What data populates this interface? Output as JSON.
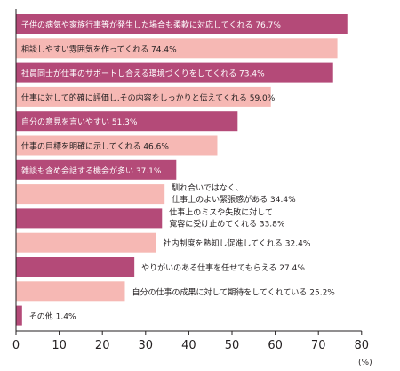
{
  "chart_data": {
    "type": "bar",
    "orientation": "horizontal",
    "categories": [
      "子供の病気や家族行事等が発生した場合も柔軟に対応してくれる",
      "相談しやすい雰囲気を作ってくれる",
      "社員同士が仕事のサポートし合える環境づくりをしてくれる",
      "仕事に対して的確に評価し,その内容をしっかりと伝えてくれる",
      "自分の意見を言いやすい",
      "仕事の目標を明確に示してくれる",
      "雑談も含め会話する機会が多い",
      "馴れ合いではなく、仕事上のよい緊張感がある",
      "仕事上のミスや失敗に対して寛容に受け止めてくれる",
      "社内制度を熟知し促進してくれる",
      "やりがいのある仕事を任せてもらえる",
      "自分の仕事の成果に対して期待をしてくれている",
      "その他"
    ],
    "label_lines": [
      [
        "子供の病気や家族行事等が発生した場合も柔軟に対応してくれる"
      ],
      [
        "相談しやすい雰囲気を作ってくれる"
      ],
      [
        "社員同士が仕事のサポートし合える環境づくりをしてくれる"
      ],
      [
        "仕事に対して的確に評価し,その内容をしっかりと伝えてくれる"
      ],
      [
        "自分の意見を言いやすい"
      ],
      [
        "仕事の目標を明確に示してくれる"
      ],
      [
        "雑談も含め会話する機会が多い"
      ],
      [
        "馴れ合いではなく、",
        "仕事上のよい緊張感がある"
      ],
      [
        "仕事上のミスや失敗に対して",
        "寛容に受け止めてくれる"
      ],
      [
        "社内制度を熟知し促進してくれる"
      ],
      [
        "やりがいのある仕事を任せてもらえる"
      ],
      [
        "自分の仕事の成果に対して期待をしてくれている"
      ],
      [
        "その他"
      ]
    ],
    "values": [
      76.7,
      74.4,
      73.4,
      59.0,
      51.3,
      46.6,
      37.1,
      34.4,
      33.8,
      32.4,
      27.4,
      25.2,
      1.4
    ],
    "value_labels": [
      "76.7%",
      "74.4%",
      "73.4%",
      "59.0%",
      "51.3%",
      "46.6%",
      "37.1%",
      "34.4%",
      "33.8%",
      "32.4%",
      "27.4%",
      "25.2%",
      "1.4%"
    ],
    "bar_colors": [
      "#b44a78",
      "#f6b8b4",
      "#b44a78",
      "#f6b8b4",
      "#b44a78",
      "#f6b8b4",
      "#b44a78",
      "#f6b8b4",
      "#b44a78",
      "#f6b8b4",
      "#b44a78",
      "#f6b8b4",
      "#b44a78"
    ],
    "label_inside": [
      true,
      true,
      true,
      true,
      true,
      true,
      true,
      false,
      false,
      false,
      false,
      false,
      false
    ],
    "xlim": [
      0,
      80
    ],
    "x_ticks": [
      "0",
      "10",
      "20",
      "30",
      "40",
      "50",
      "60",
      "70",
      "80"
    ],
    "x_unit": "(%)",
    "grid": false
  }
}
